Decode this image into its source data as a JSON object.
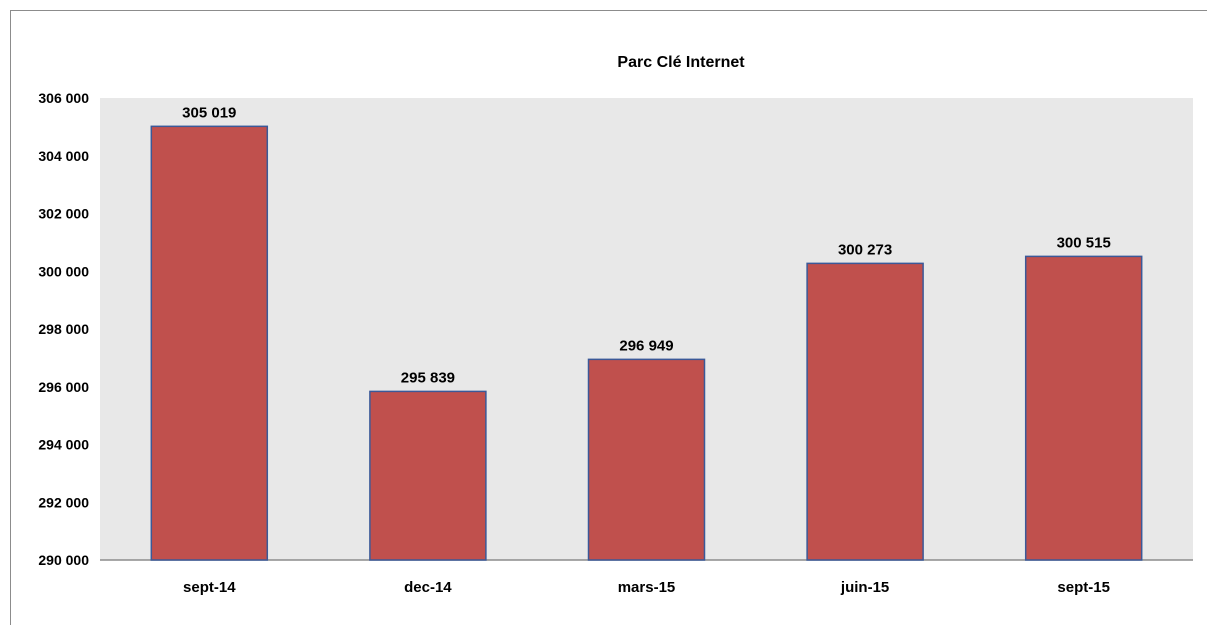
{
  "chart_data": {
    "type": "bar",
    "title": "Parc Clé Internet",
    "xlabel": "",
    "ylabel": "",
    "categories": [
      "sept-14",
      "dec-14",
      "mars-15",
      "juin-15",
      "sept-15"
    ],
    "values": [
      305019,
      295839,
      296949,
      300273,
      300515
    ],
    "value_labels": [
      "305 019",
      "295 839",
      "296 949",
      "300 273",
      "300 515"
    ],
    "ylim": [
      290000,
      306000
    ],
    "yticks": [
      290000,
      292000,
      294000,
      296000,
      298000,
      300000,
      302000,
      304000,
      306000
    ],
    "ytick_labels": [
      "290 000",
      "292 000",
      "294 000",
      "296 000",
      "298 000",
      "300 000",
      "302 000",
      "304 000",
      "306 000"
    ],
    "grid": false,
    "legend": "none",
    "colors": {
      "bar_fill": "#C0504D",
      "bar_stroke": "#3B5998",
      "plot_background": "#E8E8E8",
      "axis_line": "#8C8C8C"
    }
  }
}
